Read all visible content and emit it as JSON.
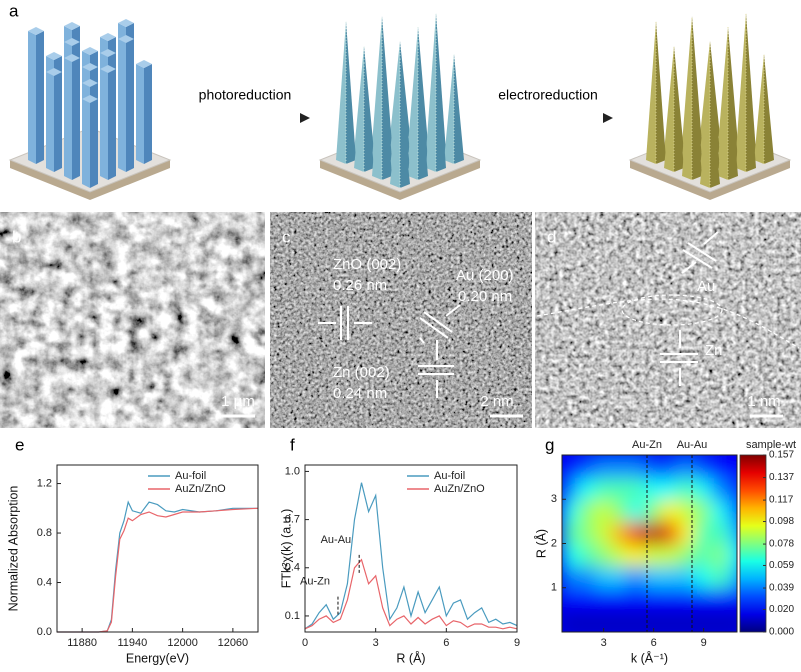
{
  "figure": {
    "a": {
      "label": "a",
      "steps": [
        "photoreduction",
        "electroreduction"
      ]
    },
    "b": {
      "label": "b",
      "scale_bar": "1 µm"
    },
    "c": {
      "label": "c",
      "annotations": [
        "ZnO (002)",
        "0.26 nm",
        "Au (200)",
        "0.20 nm",
        "Zn (002)",
        "0.24 nm"
      ],
      "scale_bar": "2 nm"
    },
    "d": {
      "label": "d",
      "annotations": [
        "Au",
        "Zn"
      ],
      "scale_bar": "1 nm"
    }
  },
  "chart_data": [
    {
      "type": "line",
      "panel": "e",
      "xlabel": "Energy(eV)",
      "ylabel": "Normalized Absorption",
      "x": [
        11850,
        11900,
        11910,
        11915,
        11920,
        11925,
        11930,
        11935,
        11940,
        11950,
        11960,
        11970,
        11980,
        11990,
        12000,
        12020,
        12040,
        12060,
        12090
      ],
      "series": [
        {
          "name": "Au-foil",
          "color": "#4a9bbf",
          "values": [
            0,
            0,
            0.01,
            0.1,
            0.5,
            0.8,
            0.9,
            1.05,
            0.98,
            0.96,
            1.05,
            1.03,
            0.98,
            0.97,
            0.99,
            0.97,
            0.98,
            1.0,
            1.0
          ]
        },
        {
          "name": "AuZn/ZnO",
          "color": "#e8656a",
          "values": [
            0,
            0,
            0.01,
            0.08,
            0.45,
            0.75,
            0.82,
            0.92,
            0.9,
            0.95,
            0.97,
            0.94,
            0.93,
            0.95,
            0.97,
            0.97,
            0.98,
            0.99,
            1.0
          ]
        }
      ],
      "xlim": [
        11850,
        12090
      ],
      "xticks": [
        11880,
        11940,
        12000,
        12060
      ],
      "ylim": [
        0,
        1.35
      ],
      "yticks": [
        {
          "value": 0,
          "label": "0.0"
        },
        0.4,
        0.8,
        1.2
      ],
      "legend": "upper right"
    },
    {
      "type": "line",
      "panel": "f",
      "xlabel": "R (Å)",
      "ylabel": "FTk²χ(k) (a.u.)",
      "x": [
        0,
        0.3,
        0.6,
        0.9,
        1.2,
        1.5,
        1.8,
        2.1,
        2.4,
        2.7,
        3,
        3.3,
        3.6,
        3.9,
        4.2,
        4.5,
        4.8,
        5.1,
        5.4,
        5.7,
        6,
        6.3,
        6.6,
        6.9,
        7.2,
        7.5,
        7.8,
        8.1,
        8.4,
        8.7,
        9
      ],
      "series": [
        {
          "name": "Au-foil",
          "color": "#4a9bbf",
          "values": [
            0.02,
            0.05,
            0.12,
            0.17,
            0.08,
            0.12,
            0.3,
            0.7,
            0.93,
            0.75,
            0.85,
            0.4,
            0.08,
            0.15,
            0.28,
            0.1,
            0.25,
            0.12,
            0.2,
            0.28,
            0.1,
            0.18,
            0.2,
            0.08,
            0.12,
            0.15,
            0.06,
            0.08,
            0.05,
            0.06,
            0.04
          ]
        },
        {
          "name": "AuZn/ZnO",
          "color": "#e8656a",
          "values": [
            0.02,
            0.04,
            0.08,
            0.1,
            0.06,
            0.08,
            0.2,
            0.4,
            0.45,
            0.3,
            0.35,
            0.15,
            0.04,
            0.08,
            0.1,
            0.05,
            0.09,
            0.05,
            0.08,
            0.1,
            0.04,
            0.07,
            0.06,
            0.03,
            0.05,
            0.05,
            0.03,
            0.03,
            0.02,
            0.03,
            0.02
          ]
        }
      ],
      "annotations": [
        {
          "text": "Au-Au",
          "x": 2.3,
          "y": 0.48
        },
        {
          "text": "Au-Zn",
          "x": 1.4,
          "y": 0.22
        }
      ],
      "xlim": [
        0,
        9
      ],
      "xticks": [
        0,
        3,
        6,
        9
      ],
      "ylim": [
        0,
        1.04
      ],
      "yticks": [
        0.1,
        0.4,
        0.7,
        {
          "value": 1,
          "label": "1.0"
        }
      ],
      "legend": "upper right"
    },
    {
      "type": "heatmap",
      "panel": "g",
      "xlabel": "k (Å⁻¹)",
      "ylabel": "R (Å)",
      "colorbar_title": "sample-wt",
      "x": [
        1,
        2,
        3,
        4,
        5,
        6,
        7,
        8,
        9,
        10,
        11
      ],
      "y": [
        0.25,
        0.75,
        1.25,
        1.75,
        2.25,
        2.75,
        3.25,
        3.75
      ],
      "z": [
        [
          0.01,
          0.01,
          0.01,
          0.01,
          0.01,
          0.01,
          0.01,
          0.01,
          0.01,
          0.01,
          0.01
        ],
        [
          0.02,
          0.02,
          0.02,
          0.02,
          0.02,
          0.02,
          0.02,
          0.02,
          0.02,
          0.02,
          0.02
        ],
        [
          0.04,
          0.04,
          0.05,
          0.05,
          0.04,
          0.05,
          0.05,
          0.05,
          0.06,
          0.07,
          0.05
        ],
        [
          0.06,
          0.07,
          0.08,
          0.09,
          0.1,
          0.09,
          0.09,
          0.08,
          0.07,
          0.08,
          0.06
        ],
        [
          0.07,
          0.08,
          0.09,
          0.11,
          0.14,
          0.15,
          0.14,
          0.1,
          0.07,
          0.07,
          0.05
        ],
        [
          0.06,
          0.08,
          0.09,
          0.08,
          0.06,
          0.08,
          0.1,
          0.09,
          0.08,
          0.06,
          0.04
        ],
        [
          0.04,
          0.06,
          0.07,
          0.07,
          0.07,
          0.06,
          0.06,
          0.07,
          0.06,
          0.04,
          0.03
        ],
        [
          0.02,
          0.03,
          0.04,
          0.04,
          0.04,
          0.03,
          0.03,
          0.04,
          0.03,
          0.02,
          0.02
        ]
      ],
      "annotations": [
        {
          "text": "Au-Zn",
          "x": 5.6
        },
        {
          "text": "Au-Au",
          "x": 8.3
        }
      ],
      "xlim": [
        0.5,
        11
      ],
      "xticks": [
        3,
        6,
        9
      ],
      "ylim": [
        0,
        4
      ],
      "yticks": [
        1,
        2,
        3
      ],
      "zlim": [
        0,
        0.157
      ],
      "zticks": [
        {
          "value": 0,
          "label": "0.000"
        },
        {
          "value": 0.02,
          "label": "0.020"
        },
        0.039,
        0.059,
        0.078,
        0.098,
        0.117,
        0.137,
        0.157
      ],
      "colormap": "jet"
    }
  ]
}
